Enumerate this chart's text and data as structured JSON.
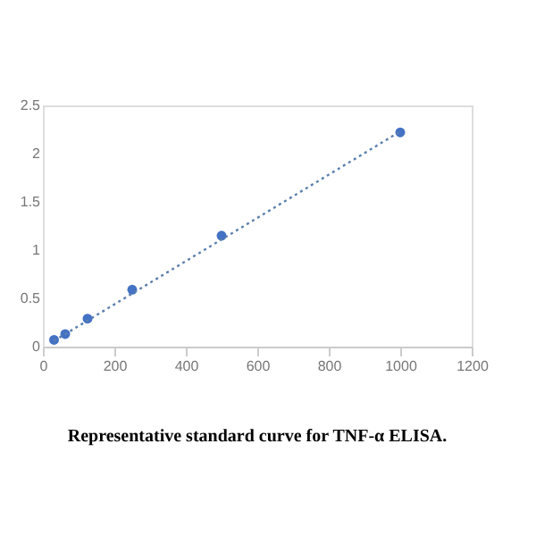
{
  "chart_data": {
    "type": "scatter",
    "title": "Representative standard curve for TNF-α ELISA.",
    "series": [
      {
        "type": "scatter",
        "color": "#4472c4",
        "marker": "circle",
        "x": [
          31.25,
          62.5,
          125,
          250,
          500,
          1000
        ],
        "values": [
          0.07,
          0.13,
          0.29,
          0.59,
          1.15,
          2.22
        ]
      },
      {
        "type": "line",
        "color": "#5a7fae",
        "line_style": "dotted",
        "x": [
          31.25,
          1000
        ],
        "values": [
          0.06,
          2.23
        ]
      }
    ],
    "xlim": [
      0,
      1200
    ],
    "xticks": [
      0,
      200,
      400,
      600,
      800,
      1000,
      1200
    ],
    "ylim": [
      0,
      2.5
    ],
    "yticks": [
      0,
      0.5,
      1,
      1.5,
      2,
      2.5
    ],
    "grid": false
  }
}
